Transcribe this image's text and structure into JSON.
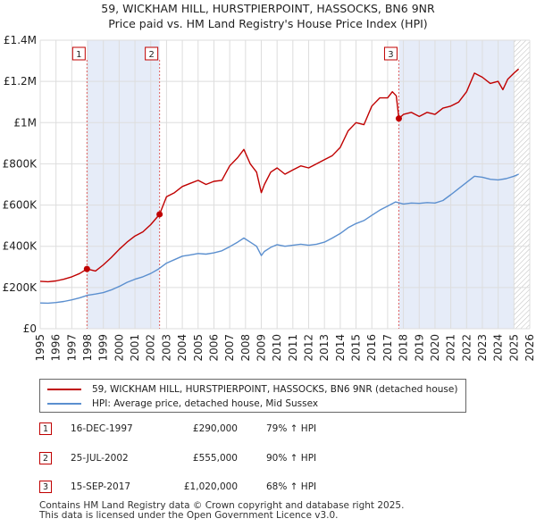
{
  "chart_data": {
    "type": "line",
    "title": "59, WICKHAM HILL, HURSTPIERPOINT, HASSOCKS, BN6 9NR",
    "subtitle": "Price paid vs. HM Land Registry's House Price Index (HPI)",
    "xlabel": "",
    "ylabel": "",
    "xlim": [
      1995,
      2026
    ],
    "ylim": [
      0,
      1400000
    ],
    "y_ticks": [
      {
        "value": 0,
        "label": "£0"
      },
      {
        "value": 200000,
        "label": "£200K"
      },
      {
        "value": 400000,
        "label": "£400K"
      },
      {
        "value": 600000,
        "label": "£600K"
      },
      {
        "value": 800000,
        "label": "£800K"
      },
      {
        "value": 1000000,
        "label": "£1M"
      },
      {
        "value": 1200000,
        "label": "£1.2M"
      },
      {
        "value": 1400000,
        "label": "£1.4M"
      }
    ],
    "x_ticks": [
      "1995",
      "1996",
      "1997",
      "1998",
      "1999",
      "2000",
      "2001",
      "2002",
      "2003",
      "2004",
      "2005",
      "2006",
      "2007",
      "2008",
      "2009",
      "2010",
      "2011",
      "2012",
      "2013",
      "2014",
      "2015",
      "2016",
      "2017",
      "2018",
      "2019",
      "2020",
      "2021",
      "2022",
      "2023",
      "2024",
      "2025",
      "2026"
    ],
    "grid": true,
    "series": [
      {
        "name": "59, WICKHAM HILL, HURSTPIERPOINT, HASSOCKS, BN6 9NR (detached house)",
        "color": "#c00000",
        "x": [
          1995.0,
          1995.5,
          1996.0,
          1996.5,
          1997.0,
          1997.5,
          1997.96,
          1998.5,
          1999.0,
          1999.5,
          2000.0,
          2000.5,
          2001.0,
          2001.5,
          2002.0,
          2002.56,
          2003.0,
          2003.5,
          2004.0,
          2004.5,
          2005.0,
          2005.5,
          2006.0,
          2006.5,
          2007.0,
          2007.5,
          2007.9,
          2008.3,
          2008.7,
          2009.0,
          2009.2,
          2009.6,
          2010.0,
          2010.5,
          2011.0,
          2011.5,
          2012.0,
          2012.5,
          2013.0,
          2013.5,
          2014.0,
          2014.5,
          2015.0,
          2015.5,
          2016.0,
          2016.5,
          2017.0,
          2017.3,
          2017.55,
          2017.71,
          2018.0,
          2018.5,
          2019.0,
          2019.5,
          2020.0,
          2020.5,
          2021.0,
          2021.5,
          2022.0,
          2022.5,
          2023.0,
          2023.5,
          2024.0,
          2024.3,
          2024.6,
          2025.0,
          2025.3
        ],
        "values": [
          230000,
          228000,
          232000,
          240000,
          252000,
          268000,
          290000,
          280000,
          310000,
          345000,
          385000,
          420000,
          450000,
          470000,
          505000,
          555000,
          640000,
          660000,
          690000,
          705000,
          720000,
          700000,
          715000,
          720000,
          790000,
          830000,
          870000,
          800000,
          760000,
          660000,
          700000,
          760000,
          780000,
          750000,
          770000,
          790000,
          780000,
          800000,
          820000,
          840000,
          880000,
          960000,
          1000000,
          990000,
          1080000,
          1120000,
          1120000,
          1150000,
          1130000,
          1020000,
          1040000,
          1050000,
          1030000,
          1050000,
          1040000,
          1070000,
          1080000,
          1100000,
          1150000,
          1240000,
          1220000,
          1190000,
          1200000,
          1160000,
          1210000,
          1240000,
          1260000
        ]
      },
      {
        "name": "HPI: Average price, detached house, Mid Sussex",
        "color": "#5b8fcf",
        "x": [
          1995.0,
          1995.5,
          1996.0,
          1996.5,
          1997.0,
          1997.5,
          1998.0,
          1998.5,
          1999.0,
          1999.5,
          2000.0,
          2000.5,
          2001.0,
          2001.5,
          2002.0,
          2002.5,
          2003.0,
          2003.5,
          2004.0,
          2004.5,
          2005.0,
          2005.5,
          2006.0,
          2006.5,
          2007.0,
          2007.5,
          2007.9,
          2008.3,
          2008.7,
          2009.0,
          2009.2,
          2009.6,
          2010.0,
          2010.5,
          2011.0,
          2011.5,
          2012.0,
          2012.5,
          2013.0,
          2013.5,
          2014.0,
          2014.5,
          2015.0,
          2015.5,
          2016.0,
          2016.5,
          2017.0,
          2017.5,
          2018.0,
          2018.5,
          2019.0,
          2019.5,
          2020.0,
          2020.5,
          2021.0,
          2021.5,
          2022.0,
          2022.5,
          2023.0,
          2023.5,
          2024.0,
          2024.5,
          2025.0,
          2025.3
        ],
        "values": [
          125000,
          124000,
          127000,
          132000,
          140000,
          150000,
          162000,
          168000,
          175000,
          188000,
          205000,
          225000,
          240000,
          252000,
          268000,
          290000,
          318000,
          335000,
          352000,
          358000,
          365000,
          362000,
          368000,
          378000,
          398000,
          420000,
          440000,
          420000,
          400000,
          355000,
          375000,
          395000,
          408000,
          400000,
          405000,
          410000,
          405000,
          410000,
          420000,
          440000,
          462000,
          490000,
          510000,
          525000,
          550000,
          575000,
          595000,
          615000,
          605000,
          610000,
          608000,
          612000,
          610000,
          622000,
          650000,
          680000,
          710000,
          740000,
          735000,
          725000,
          722000,
          728000,
          740000,
          750000
        ]
      }
    ],
    "annotations": [
      {
        "label": "1",
        "x": 1997.96,
        "value": 290000
      },
      {
        "label": "2",
        "x": 2002.56,
        "value": 555000
      },
      {
        "label": "3",
        "x": 2017.71,
        "value": 1020000
      }
    ],
    "shaded_ranges": [
      [
        1997.96,
        2002.56
      ],
      [
        2017.71,
        2025.0
      ]
    ],
    "hatched_from": 2025.0
  },
  "legend": {
    "items": [
      {
        "label": "59, WICKHAM HILL, HURSTPIERPOINT, HASSOCKS, BN6 9NR (detached house)",
        "color": "#c00000"
      },
      {
        "label": "HPI: Average price, detached house, Mid Sussex",
        "color": "#5b8fcf"
      }
    ]
  },
  "transactions": [
    {
      "num": "1",
      "date": "16-DEC-1997",
      "price": "£290,000",
      "hpi": "79% ↑ HPI"
    },
    {
      "num": "2",
      "date": "25-JUL-2002",
      "price": "£555,000",
      "hpi": "90% ↑ HPI"
    },
    {
      "num": "3",
      "date": "15-SEP-2017",
      "price": "£1,020,000",
      "hpi": "68% ↑ HPI"
    }
  ],
  "footer": {
    "line1": "Contains HM Land Registry data © Crown copyright and database right 2025.",
    "line2": "This data is licensed under the Open Government Licence v3.0."
  }
}
